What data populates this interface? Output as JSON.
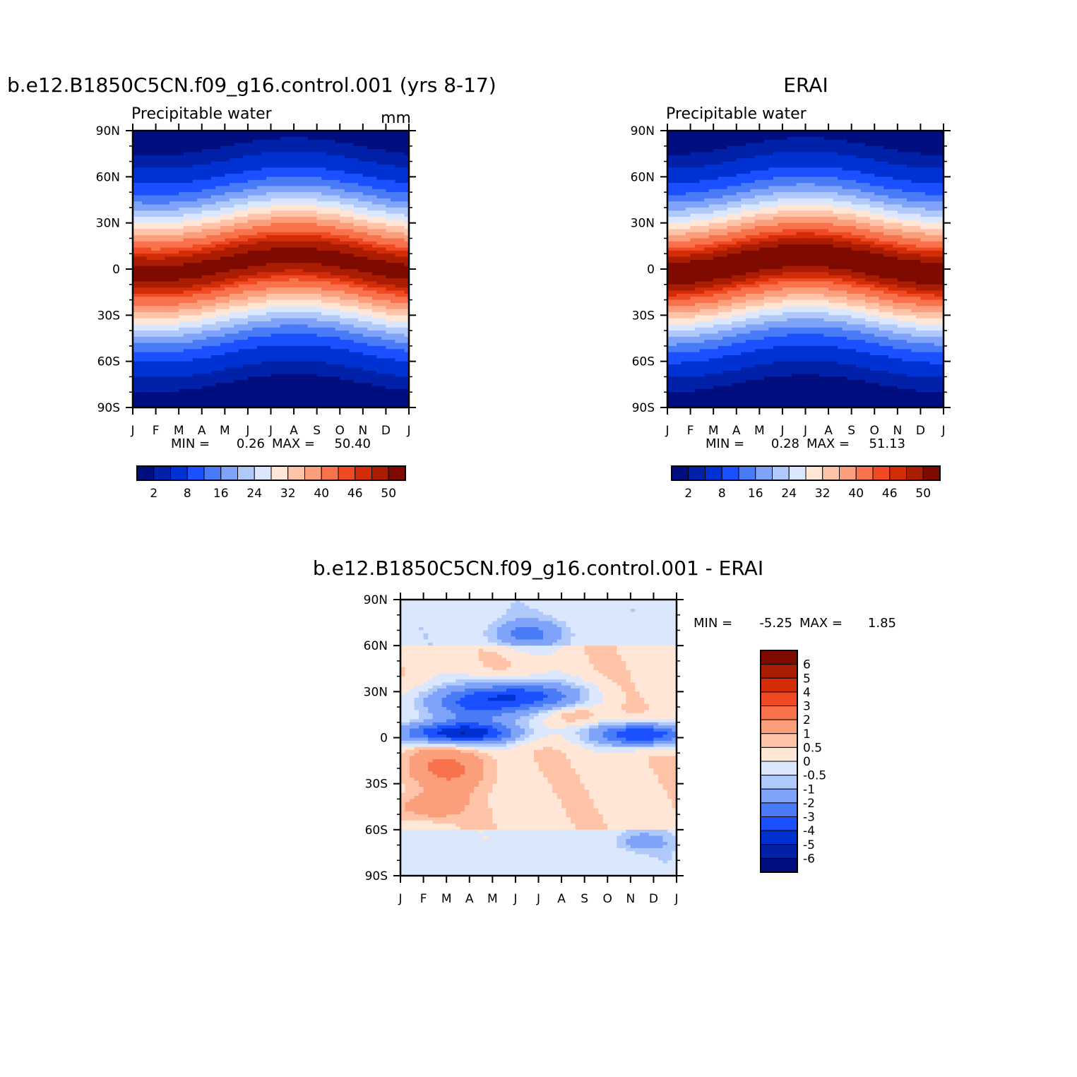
{
  "chart_data": [
    {
      "type": "heatmap",
      "title": "b.e12.B1850C5CN.f09_g16.control.001 (yrs 8-17)",
      "subtitle_left": "Precipitable water",
      "subtitle_right": "mm",
      "x_tick_labels": [
        "J",
        "F",
        "M",
        "A",
        "M",
        "J",
        "J",
        "A",
        "S",
        "O",
        "N",
        "D",
        "J"
      ],
      "y_tick_labels": [
        "90N",
        "60N",
        "30N",
        "0",
        "30S",
        "60S",
        "90S"
      ],
      "ylim": [
        -90,
        90
      ],
      "min_label": "MIN =",
      "min_value": "0.26",
      "max_label": "MAX =",
      "max_value": "50.40",
      "colorbar_labels": [
        "2",
        "8",
        "16",
        "24",
        "32",
        "40",
        "46",
        "50"
      ],
      "peak_month": 7.0,
      "peak_max": 50.4,
      "min_value_num": 0.26
    },
    {
      "type": "heatmap",
      "title": "ERAI",
      "subtitle_left": "Precipitable water",
      "subtitle_right": "",
      "x_tick_labels": [
        "J",
        "F",
        "M",
        "A",
        "M",
        "J",
        "J",
        "A",
        "S",
        "O",
        "N",
        "D",
        "J"
      ],
      "y_tick_labels": [
        "90N",
        "60N",
        "30N",
        "0",
        "30S",
        "60S",
        "90S"
      ],
      "ylim": [
        -90,
        90
      ],
      "min_label": "MIN =",
      "min_value": "0.28",
      "max_label": "MAX =",
      "max_value": "51.13",
      "colorbar_labels": [
        "2",
        "8",
        "16",
        "24",
        "32",
        "40",
        "46",
        "50"
      ],
      "peak_month": 6.0,
      "peak_max": 51.13,
      "min_value_num": 0.28
    },
    {
      "type": "heatmap",
      "title": "b.e12.B1850C5CN.f09_g16.control.001 - ERAI",
      "x_tick_labels": [
        "J",
        "F",
        "M",
        "A",
        "M",
        "J",
        "J",
        "A",
        "S",
        "O",
        "N",
        "D",
        "J"
      ],
      "y_tick_labels": [
        "90N",
        "60N",
        "30N",
        "0",
        "30S",
        "60S",
        "90S"
      ],
      "ylim": [
        -90,
        90
      ],
      "min_label": "MIN =",
      "min_value": "-5.25",
      "max_label": "MAX =",
      "max_value": "1.85",
      "colorbar_labels": [
        "6",
        "5",
        "4",
        "3",
        "2",
        "1",
        "0.5",
        "0",
        "-0.5",
        "-1",
        "-2",
        "-3",
        "-4",
        "-5",
        "-6"
      ],
      "diff_features": [
        {
          "month": 3.5,
          "lat": 22,
          "value": -3.2,
          "month_width": 2.0,
          "lat_width": 8
        },
        {
          "month": 5.5,
          "lat": 28,
          "value": -2.8,
          "month_width": 1.6,
          "lat_width": 6
        },
        {
          "month": 2.5,
          "lat": 3,
          "value": -5.2,
          "month_width": 1.8,
          "lat_width": 5
        },
        {
          "month": 10.5,
          "lat": 2,
          "value": -4.6,
          "month_width": 1.4,
          "lat_width": 5
        },
        {
          "month": 5.5,
          "lat": 68,
          "value": -2.0,
          "month_width": 1.1,
          "lat_width": 6
        },
        {
          "month": 2.0,
          "lat": -20,
          "value": 1.8,
          "month_width": 1.3,
          "lat_width": 10
        },
        {
          "month": 1.2,
          "lat": -45,
          "value": 1.4,
          "month_width": 1.0,
          "lat_width": 6
        },
        {
          "month": 7.5,
          "lat": 15,
          "value": 1.1,
          "month_width": 0.8,
          "lat_width": 4
        },
        {
          "month": 10.5,
          "lat": -68,
          "value": -1.2,
          "month_width": 0.8,
          "lat_width": 4
        }
      ]
    }
  ],
  "colorbars": {
    "field_colors": [
      "#000e7f",
      "#0021a8",
      "#0032d3",
      "#1a50ff",
      "#4a7bf7",
      "#7ea3f8",
      "#b0c9fb",
      "#dbe7fd",
      "#ffe6d6",
      "#ffc4a8",
      "#fb9e7c",
      "#f8734c",
      "#f04a24",
      "#d22c08",
      "#aa1d02",
      "#7f0b00"
    ],
    "diff_colors": [
      "#7f0b00",
      "#aa1d02",
      "#d22c08",
      "#f04a24",
      "#f8734c",
      "#fb9e7c",
      "#ffc4a8",
      "#ffe6d6",
      "#dbe7fd",
      "#b0c9fb",
      "#7ea3f8",
      "#4a7bf7",
      "#1a50ff",
      "#0032d3",
      "#0021a8",
      "#000e7f"
    ]
  }
}
